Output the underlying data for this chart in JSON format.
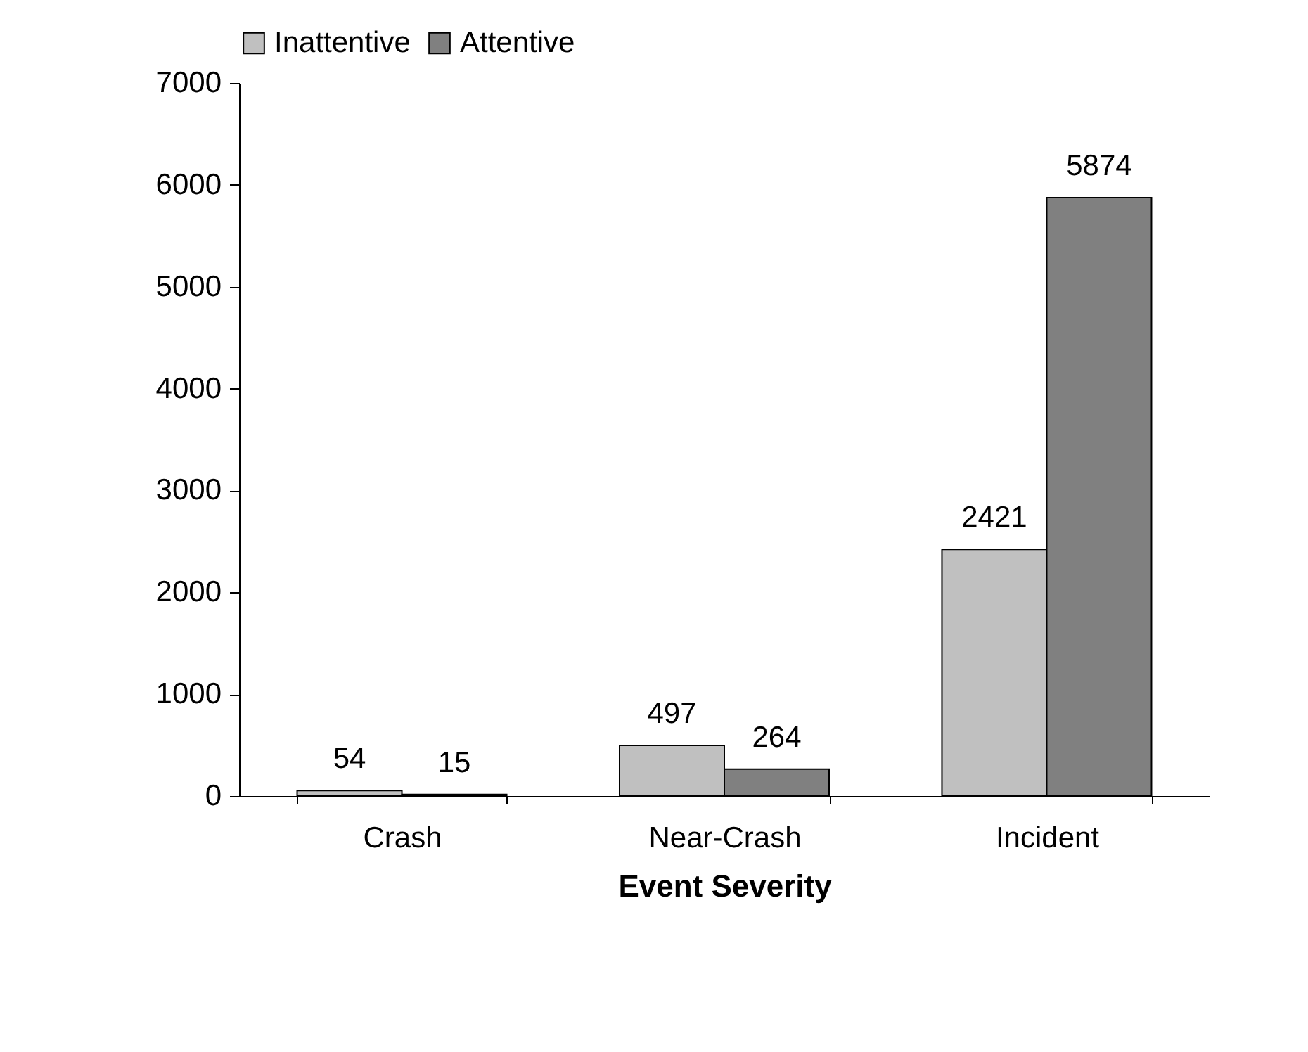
{
  "chart_data": {
    "type": "bar",
    "xlabel": "Event Severity",
    "categories": [
      "Crash",
      "Near-Crash",
      "Incident"
    ],
    "series": [
      {
        "name": "Inattentive",
        "color": "#c0c0c0",
        "values": [
          54,
          497,
          2421
        ]
      },
      {
        "name": "Attentive",
        "color": "#808080",
        "values": [
          15,
          264,
          5874
        ]
      }
    ],
    "ylim": [
      0,
      7000
    ],
    "yticks": [
      0,
      1000,
      2000,
      3000,
      4000,
      5000,
      6000,
      7000
    ],
    "grid": false,
    "legend": "top",
    "data_labels": true
  }
}
